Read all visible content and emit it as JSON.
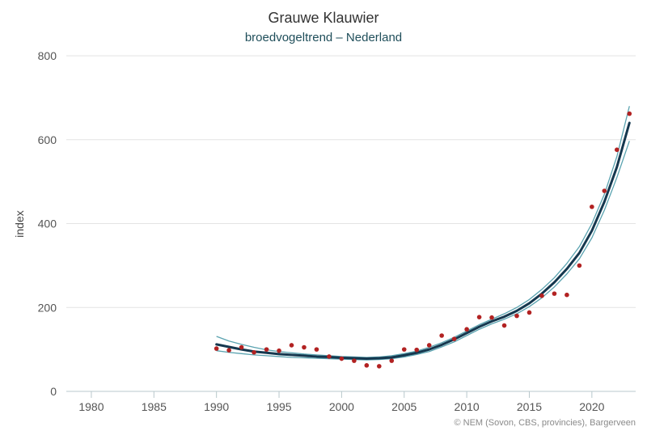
{
  "chart_data": {
    "type": "line",
    "title": "Grauwe Klauwier",
    "subtitle": "broedvogeltrend – Nederland",
    "xlabel": "",
    "ylabel": "index",
    "xlim": [
      1978,
      2023.5
    ],
    "ylim": [
      0,
      800
    ],
    "x_ticks": [
      1980,
      1985,
      1990,
      1995,
      2000,
      2005,
      2010,
      2015,
      2020
    ],
    "y_ticks": [
      0,
      200,
      400,
      600,
      800
    ],
    "grid": "horizontal",
    "legend": "none",
    "credit": "© NEM (Sovon, CBS, provincies), Bargerveen",
    "colors": {
      "trend": "#15384f",
      "ci": "#5aa3b0",
      "points": "#b22222",
      "grid": "#e3e3e3"
    },
    "series": [
      {
        "role": "observed-points",
        "kind": "scatter",
        "x": [
          1990,
          1991,
          1992,
          1993,
          1994,
          1995,
          1996,
          1997,
          1998,
          1999,
          2000,
          2001,
          2002,
          2003,
          2004,
          2005,
          2006,
          2007,
          2008,
          2009,
          2010,
          2011,
          2012,
          2013,
          2014,
          2015,
          2016,
          2017,
          2018,
          2019,
          2020,
          2021,
          2022,
          2023
        ],
        "values": [
          102,
          98,
          105,
          93,
          100,
          97,
          110,
          105,
          100,
          83,
          78,
          73,
          62,
          60,
          73,
          100,
          99,
          110,
          133,
          125,
          148,
          177,
          176,
          157,
          180,
          188,
          228,
          233,
          230,
          300,
          440,
          478,
          576,
          662
        ]
      },
      {
        "role": "trend",
        "kind": "line",
        "x": [
          1990,
          1991,
          1992,
          1993,
          1994,
          1995,
          1996,
          1997,
          1998,
          1999,
          2000,
          2001,
          2002,
          2003,
          2004,
          2005,
          2006,
          2007,
          2008,
          2009,
          2010,
          2011,
          2012,
          2013,
          2014,
          2015,
          2016,
          2017,
          2018,
          2019,
          2020,
          2021,
          2022,
          2023
        ],
        "values": [
          112,
          106,
          100,
          95,
          92,
          89,
          87,
          85,
          83,
          82,
          80,
          79,
          78,
          79,
          81,
          86,
          92,
          100,
          111,
          124,
          139,
          154,
          167,
          178,
          192,
          210,
          233,
          260,
          292,
          330,
          383,
          452,
          535,
          640
        ]
      },
      {
        "role": "ci-upper",
        "kind": "line",
        "x": [
          1990,
          1991,
          1992,
          1993,
          1994,
          1995,
          1996,
          1997,
          1998,
          1999,
          2000,
          2001,
          2002,
          2003,
          2004,
          2005,
          2006,
          2007,
          2008,
          2009,
          2010,
          2011,
          2012,
          2013,
          2014,
          2015,
          2016,
          2017,
          2018,
          2019,
          2020,
          2021,
          2022,
          2023
        ],
        "values": [
          131,
          120,
          112,
          105,
          99,
          95,
          92,
          89,
          87,
          85,
          83,
          82,
          81,
          82,
          85,
          90,
          96,
          105,
          116,
          129,
          144,
          159,
          172,
          185,
          200,
          219,
          243,
          271,
          305,
          345,
          400,
          470,
          560,
          680
        ]
      },
      {
        "role": "ci-lower",
        "kind": "line",
        "x": [
          1990,
          1991,
          1992,
          1993,
          1994,
          1995,
          1996,
          1997,
          1998,
          1999,
          2000,
          2001,
          2002,
          2003,
          2004,
          2005,
          2006,
          2007,
          2008,
          2009,
          2010,
          2011,
          2012,
          2013,
          2014,
          2015,
          2016,
          2017,
          2018,
          2019,
          2020,
          2021,
          2022,
          2023
        ],
        "values": [
          97,
          93,
          90,
          87,
          85,
          83,
          81,
          80,
          79,
          78,
          77,
          76,
          75,
          76,
          78,
          82,
          88,
          95,
          106,
          118,
          133,
          148,
          161,
          172,
          185,
          202,
          223,
          249,
          280,
          316,
          366,
          432,
          510,
          597
        ]
      }
    ]
  }
}
